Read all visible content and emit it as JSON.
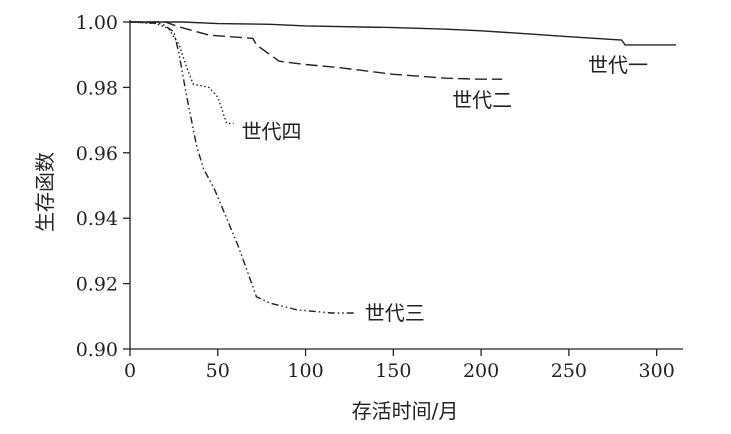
{
  "chart_data": {
    "type": "line",
    "title": "",
    "xlabel": "存活时间/月",
    "ylabel": "生存函数",
    "xlim": [
      0,
      315
    ],
    "ylim": [
      0.9,
      1.0
    ],
    "xticks": [
      0,
      50,
      100,
      150,
      200,
      250,
      300
    ],
    "yticks": [
      0.9,
      0.92,
      0.94,
      0.96,
      0.98,
      1.0
    ],
    "xtick_labels": [
      "0",
      "50",
      "100",
      "150",
      "200",
      "250",
      "300"
    ],
    "ytick_labels": [
      "0.90",
      "0.92",
      "0.94",
      "0.96",
      "0.98",
      "1.00"
    ],
    "grid": false,
    "legend": "none",
    "series": [
      {
        "name": "世代一",
        "style": "solid",
        "points": [
          [
            0,
            1.0
          ],
          [
            30,
            1.0
          ],
          [
            50,
            0.9995
          ],
          [
            80,
            0.9993
          ],
          [
            100,
            0.9988
          ],
          [
            150,
            0.9983
          ],
          [
            180,
            0.9978
          ],
          [
            200,
            0.9973
          ],
          [
            220,
            0.9966
          ],
          [
            250,
            0.9955
          ],
          [
            280,
            0.9945
          ],
          [
            282,
            0.993
          ],
          [
            311,
            0.993
          ]
        ]
      },
      {
        "name": "世代二",
        "style": "dashed",
        "points": [
          [
            0,
            1.0
          ],
          [
            20,
            1.0
          ],
          [
            28,
            0.9985
          ],
          [
            45,
            0.996
          ],
          [
            70,
            0.995
          ],
          [
            72,
            0.993
          ],
          [
            85,
            0.988
          ],
          [
            100,
            0.987
          ],
          [
            120,
            0.986
          ],
          [
            150,
            0.984
          ],
          [
            180,
            0.9828
          ],
          [
            200,
            0.9825
          ],
          [
            212,
            0.9825
          ]
        ]
      },
      {
        "name": "世代三",
        "style": "dash-dot-dot",
        "points": [
          [
            0,
            1.0
          ],
          [
            18,
            0.9995
          ],
          [
            25,
            0.997
          ],
          [
            28,
            0.99
          ],
          [
            32,
            0.978
          ],
          [
            38,
            0.962
          ],
          [
            42,
            0.955
          ],
          [
            48,
            0.949
          ],
          [
            55,
            0.94
          ],
          [
            62,
            0.931
          ],
          [
            68,
            0.922
          ],
          [
            72,
            0.916
          ],
          [
            80,
            0.914
          ],
          [
            95,
            0.912
          ],
          [
            115,
            0.911
          ],
          [
            128,
            0.911
          ]
        ]
      },
      {
        "name": "世代四",
        "style": "dotted",
        "points": [
          [
            0,
            1.0
          ],
          [
            15,
            0.9995
          ],
          [
            22,
            0.998
          ],
          [
            28,
            0.993
          ],
          [
            32,
            0.9865
          ],
          [
            36,
            0.981
          ],
          [
            45,
            0.98
          ],
          [
            50,
            0.977
          ],
          [
            55,
            0.969
          ],
          [
            59,
            0.969
          ]
        ]
      }
    ]
  }
}
